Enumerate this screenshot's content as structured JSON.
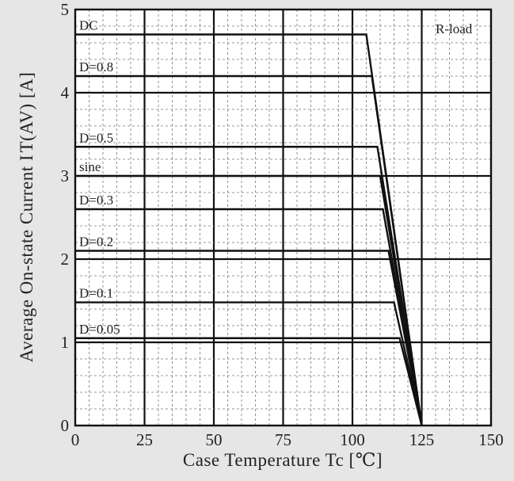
{
  "chart_data": {
    "type": "line",
    "ylabel": "Average On-state Current  I T(AV) [A]",
    "xlabel": "Case Temperature   Tc [℃]",
    "annotation": "R-load",
    "xlim": [
      0,
      150
    ],
    "ylim": [
      0,
      5
    ],
    "x_ticks": [
      "0",
      "25",
      "50",
      "75",
      "100",
      "125",
      "150"
    ],
    "y_ticks": [
      "0",
      "1",
      "2",
      "3",
      "4",
      "5"
    ],
    "grid": true,
    "series": [
      {
        "name": "DC",
        "x": [
          0,
          105,
          125
        ],
        "y": [
          4.7,
          4.7,
          0
        ]
      },
      {
        "name": "D=0.8",
        "x": [
          0,
          107,
          125
        ],
        "y": [
          4.2,
          4.2,
          0
        ]
      },
      {
        "name": "D=0.5",
        "x": [
          0,
          109,
          125
        ],
        "y": [
          3.35,
          3.35,
          0
        ]
      },
      {
        "name": "sine",
        "x": [
          0,
          110,
          125
        ],
        "y": [
          3.0,
          3.0,
          0
        ]
      },
      {
        "name": "D=0.3",
        "x": [
          0,
          111,
          125
        ],
        "y": [
          2.6,
          2.6,
          0
        ]
      },
      {
        "name": "D=0.2",
        "x": [
          0,
          113,
          125
        ],
        "y": [
          2.1,
          2.1,
          0
        ]
      },
      {
        "name": "D=0.1",
        "x": [
          0,
          115,
          125
        ],
        "y": [
          1.48,
          1.48,
          0
        ]
      },
      {
        "name": "D=0.05",
        "x": [
          0,
          117,
          125
        ],
        "y": [
          1.05,
          1.05,
          0
        ]
      }
    ]
  }
}
